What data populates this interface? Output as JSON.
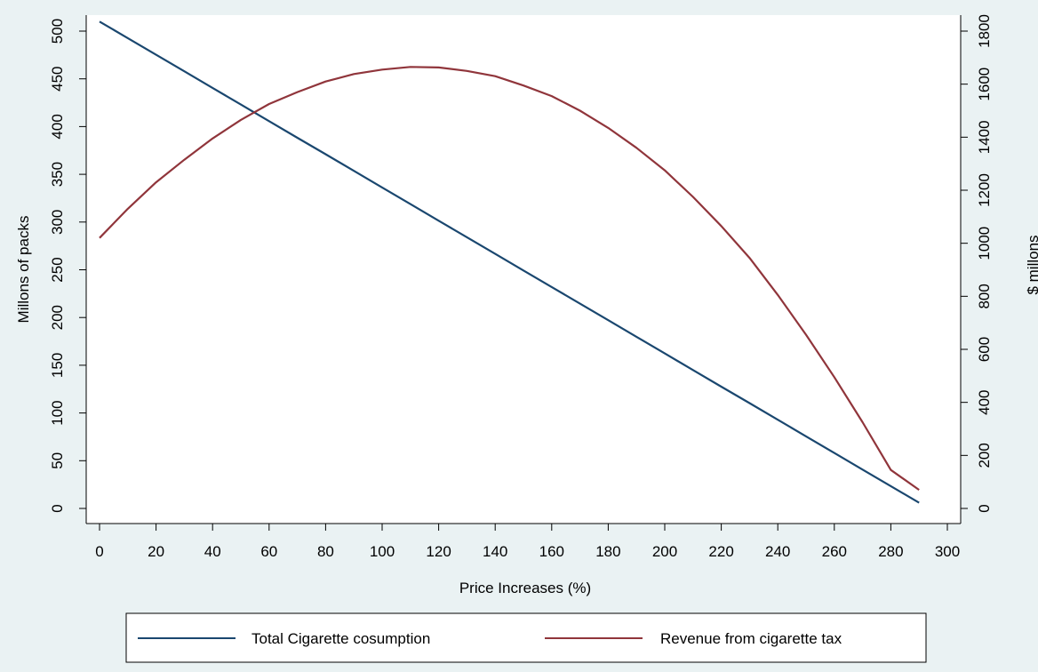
{
  "chart_data": {
    "type": "line",
    "title": "",
    "xlabel": "Price Increases (%)",
    "ylabel_left": "Millons of packs",
    "ylabel_right": "$ millons",
    "xlim": [
      0,
      300
    ],
    "ylim_left": [
      0,
      500
    ],
    "ylim_right": [
      0,
      1800
    ],
    "x_ticks": [
      0,
      20,
      40,
      60,
      80,
      100,
      120,
      140,
      160,
      180,
      200,
      220,
      240,
      260,
      280,
      300
    ],
    "y_left_ticks": [
      0,
      50,
      100,
      150,
      200,
      250,
      300,
      350,
      400,
      450,
      500
    ],
    "y_right_ticks": [
      0,
      200,
      400,
      600,
      800,
      1000,
      1200,
      1400,
      1600,
      1800
    ],
    "grid": false,
    "legend_position": "bottom",
    "series": [
      {
        "name": "Total Cigarette cosumption",
        "axis": "left",
        "color": "#1a476f",
        "x": [
          0,
          10,
          20,
          30,
          40,
          50,
          60,
          70,
          80,
          90,
          100,
          110,
          120,
          130,
          140,
          150,
          160,
          170,
          180,
          190,
          200,
          210,
          220,
          230,
          240,
          250,
          260,
          270,
          280,
          290
        ],
        "values": [
          510,
          492.6,
          475.2,
          457.9,
          440.5,
          423.1,
          405.7,
          388.3,
          371.0,
          353.6,
          336.2,
          318.8,
          301.4,
          284.1,
          266.7,
          249.3,
          231.9,
          214.5,
          197.2,
          179.8,
          162.4,
          145.0,
          127.6,
          110.3,
          92.9,
          75.5,
          58.1,
          40.7,
          23.4,
          6
        ]
      },
      {
        "name": "Revenue from cigarette tax",
        "axis": "right",
        "color": "#90353b",
        "x": [
          0,
          10,
          20,
          30,
          40,
          50,
          60,
          70,
          80,
          90,
          100,
          110,
          120,
          130,
          140,
          150,
          160,
          170,
          180,
          190,
          200,
          210,
          220,
          230,
          240,
          250,
          260,
          270,
          280,
          290
        ],
        "values": [
          1020,
          1130,
          1230,
          1315,
          1395,
          1465,
          1525,
          1570,
          1610,
          1638,
          1655,
          1665,
          1663,
          1650,
          1630,
          1595,
          1555,
          1500,
          1435,
          1360,
          1275,
          1175,
          1065,
          945,
          805,
          655,
          495,
          325,
          145,
          70
        ]
      }
    ]
  }
}
